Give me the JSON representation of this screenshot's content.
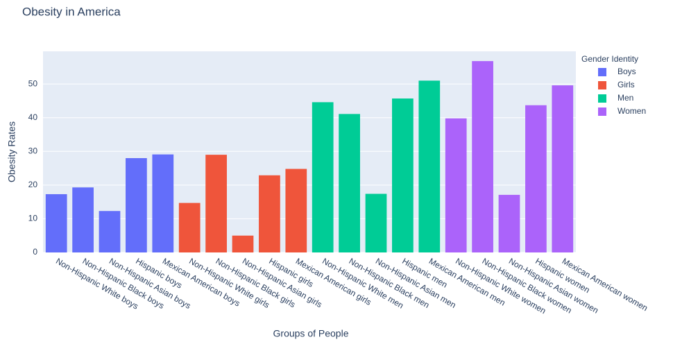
{
  "chart_data": {
    "type": "bar",
    "title": "Obesity in America",
    "x_label": "Groups of People",
    "y_label": "Obesity Rates",
    "legend_title": "Gender Identity",
    "legend_position": "right",
    "categories": [
      "Non-Hispanic White boys",
      "Non-Hispanic Black boys",
      "Non-Hispanic Asian boys",
      "Hispanic boys",
      "Mexican American boys",
      "Non-Hispanic White girls",
      "Non-Hispanic Black girls",
      "Non-Hispanic Asian girls",
      "Hispanic girls",
      "Mexican American girls",
      "Non-Hispanic White men",
      "Non-Hispanic Black men",
      "Non-Hispanic Asian men",
      "Hispanic men",
      "Mexican American men",
      "Non-Hispanic White women",
      "Non-Hispanic Black women",
      "Non-Hispanic Asian women",
      "Hispanic women",
      "Mexican American women"
    ],
    "series": [
      {
        "name": "Boys",
        "color": "#636efa",
        "values": [
          17.3,
          19.3,
          12.3,
          28,
          29.1,
          null,
          null,
          null,
          null,
          null,
          null,
          null,
          null,
          null,
          null,
          null,
          null,
          null,
          null,
          null
        ]
      },
      {
        "name": "Girls",
        "color": "#ef553b",
        "values": [
          null,
          null,
          null,
          null,
          null,
          14.7,
          29,
          5,
          22.9,
          24.8,
          null,
          null,
          null,
          null,
          null,
          null,
          null,
          null,
          null,
          null
        ]
      },
      {
        "name": "Men",
        "color": "#00cc96",
        "values": [
          null,
          null,
          null,
          null,
          null,
          null,
          null,
          null,
          null,
          null,
          44.6,
          41.1,
          17.4,
          45.7,
          51,
          null,
          null,
          null,
          null,
          null
        ]
      },
      {
        "name": "Women",
        "color": "#ab63fa",
        "values": [
          null,
          null,
          null,
          null,
          null,
          null,
          null,
          null,
          null,
          null,
          null,
          null,
          null,
          null,
          null,
          39.8,
          56.8,
          17.1,
          43.7,
          49.6
        ]
      }
    ],
    "ylim": [
      0,
      59.7
    ],
    "yticks": [
      0,
      10,
      20,
      30,
      40,
      50
    ],
    "grid": true
  }
}
